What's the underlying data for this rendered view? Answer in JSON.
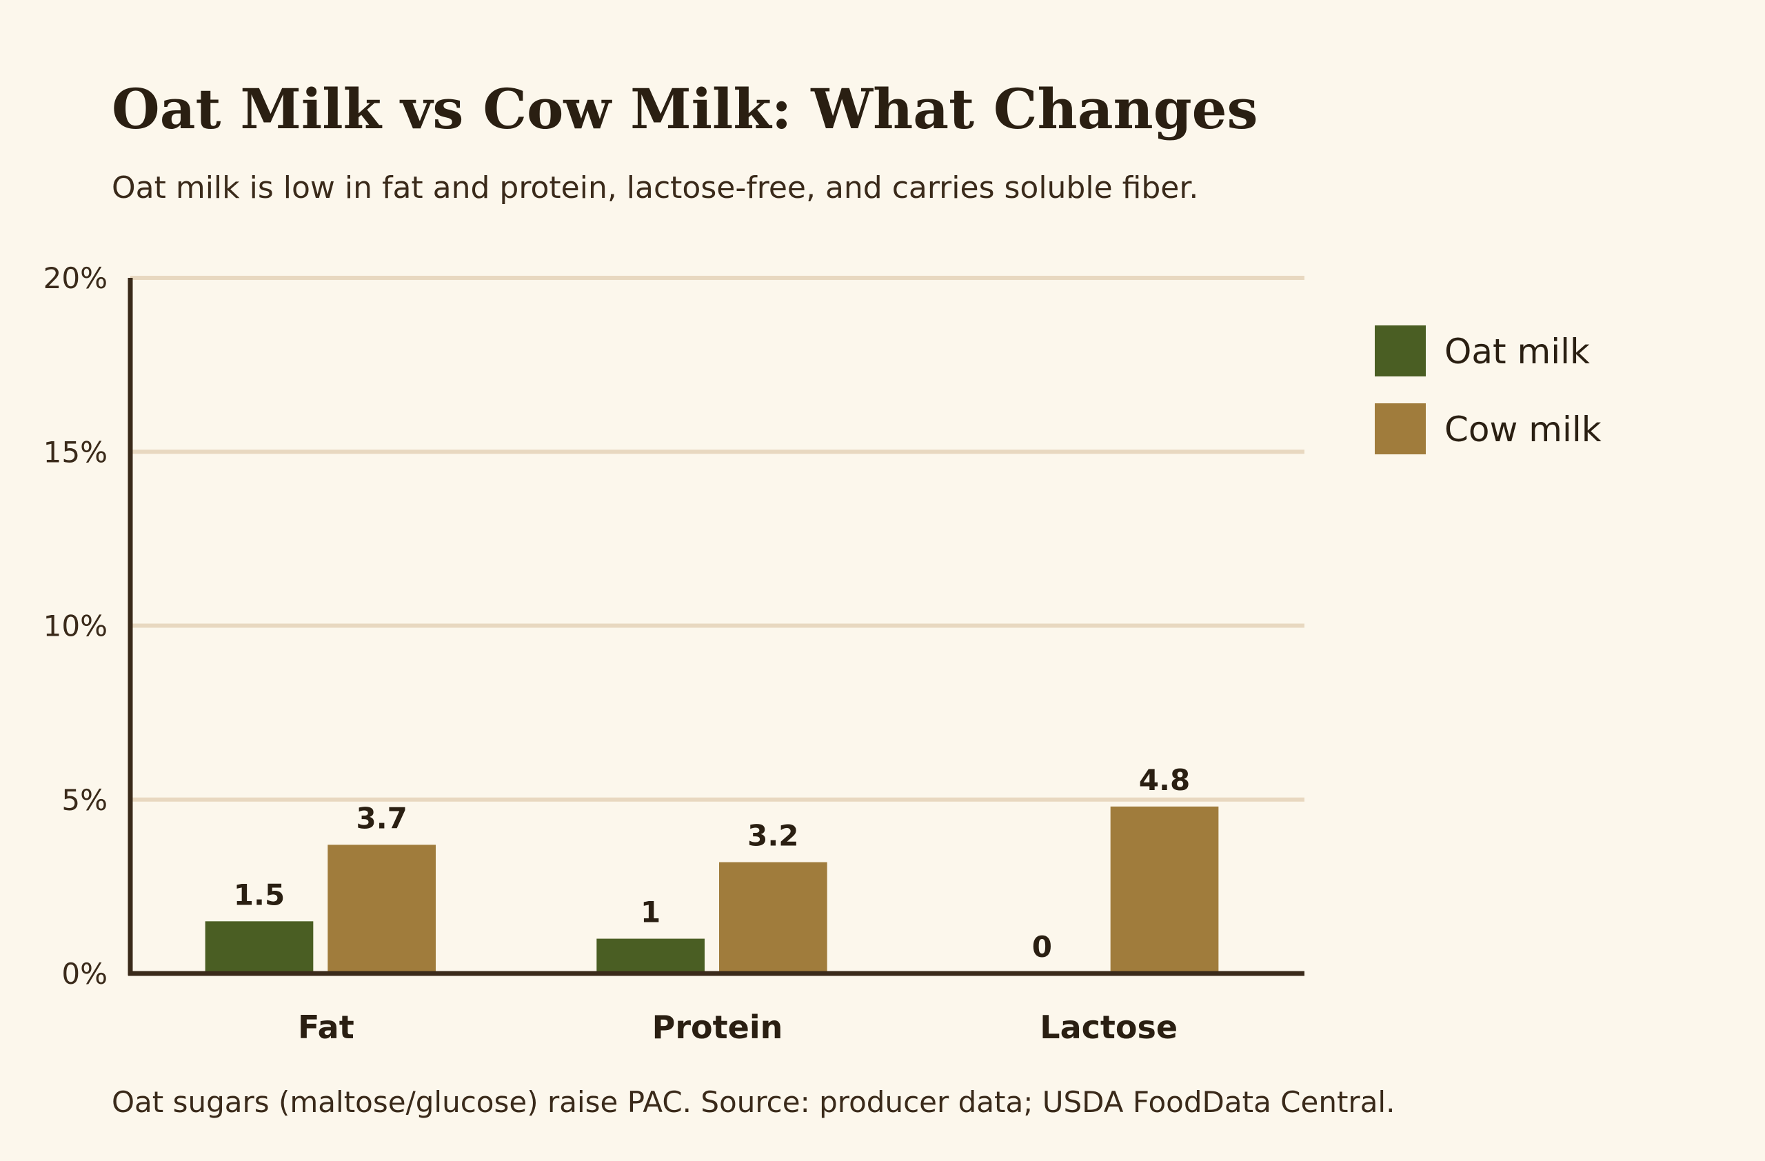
{
  "chart_data": {
    "type": "bar",
    "title": "Oat Milk vs Cow Milk: What Changes",
    "subtitle": "Oat milk is low in fat and protein, lactose-free, and carries soluble fiber.",
    "footnote": "Oat sugars (maltose/glucose) raise PAC. Source: producer data; USDA FoodData Central.",
    "categories": [
      "Fat",
      "Protein",
      "Lactose"
    ],
    "series": [
      {
        "name": "Oat milk",
        "color": "#4a5e23",
        "values": [
          1.5,
          1,
          0
        ]
      },
      {
        "name": "Cow milk",
        "color": "#a07c3c",
        "values": [
          3.7,
          3.2,
          4.8
        ]
      }
    ],
    "ylim": [
      0,
      20
    ],
    "yticks": [
      {
        "value": 0,
        "label": "0%"
      },
      {
        "value": 5,
        "label": "5%"
      },
      {
        "value": 10,
        "label": "10%"
      },
      {
        "value": 15,
        "label": "15%"
      },
      {
        "value": 20,
        "label": "20%"
      }
    ],
    "grid": true,
    "legend": "right"
  }
}
